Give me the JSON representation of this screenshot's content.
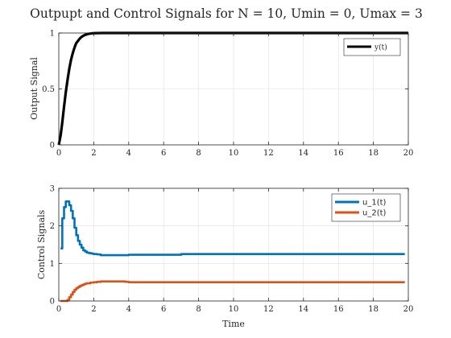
{
  "chart_data": [
    {
      "type": "line",
      "title": "Outpupt and Control Signals for N = 10, Umin = 0, Umax = 3",
      "xlabel": "",
      "ylabel": "Output Signal",
      "xlim": [
        0,
        20
      ],
      "ylim": [
        0,
        1
      ],
      "x_ticks": [
        "0",
        "2",
        "4",
        "6",
        "8",
        "10",
        "12",
        "14",
        "16",
        "18",
        "20"
      ],
      "y_ticks": [
        "0",
        "0.5",
        "1"
      ],
      "grid": true,
      "legend_position": "top-right",
      "series": [
        {
          "name": "y(t)",
          "color": "#000000",
          "x": [
            0,
            0.1,
            0.2,
            0.3,
            0.4,
            0.5,
            0.6,
            0.7,
            0.8,
            0.9,
            1.0,
            1.1,
            1.2,
            1.3,
            1.4,
            1.5,
            1.6,
            1.7,
            1.8,
            1.9,
            2.0,
            2.2,
            2.5,
            3.0,
            4.0,
            6.0,
            8.0,
            10.0,
            14.0,
            20.0
          ],
          "y": [
            0,
            0.08,
            0.2,
            0.34,
            0.47,
            0.58,
            0.68,
            0.76,
            0.82,
            0.87,
            0.91,
            0.93,
            0.95,
            0.965,
            0.975,
            0.983,
            0.988,
            0.992,
            0.995,
            0.997,
            0.998,
            0.999,
            1.0,
            1.0,
            1.0,
            1.0,
            1.0,
            1.0,
            1.0,
            1.0
          ]
        }
      ]
    },
    {
      "type": "line",
      "title": "",
      "xlabel": "Time",
      "ylabel": "Control Signals",
      "xlim": [
        0,
        20
      ],
      "ylim": [
        0,
        3
      ],
      "x_ticks": [
        "0",
        "2",
        "4",
        "6",
        "8",
        "10",
        "12",
        "14",
        "16",
        "18",
        "20"
      ],
      "y_ticks": [
        "0",
        "1",
        "2",
        "3"
      ],
      "grid": true,
      "legend_position": "top-right",
      "step": true,
      "series": [
        {
          "name": "u_1(t)",
          "color": "#0072BD",
          "x": [
            0.1,
            0.2,
            0.3,
            0.4,
            0.5,
            0.6,
            0.7,
            0.8,
            0.9,
            1.0,
            1.1,
            1.2,
            1.3,
            1.4,
            1.5,
            1.6,
            1.7,
            1.8,
            1.9,
            2.0,
            2.2,
            2.4,
            2.6,
            3.0,
            3.5,
            4.0,
            5.0,
            6.0,
            7.0,
            10.0,
            15.0,
            19.8
          ],
          "y": [
            1.4,
            2.2,
            2.5,
            2.65,
            2.65,
            2.55,
            2.4,
            2.2,
            1.95,
            1.75,
            1.6,
            1.5,
            1.42,
            1.35,
            1.32,
            1.29,
            1.28,
            1.27,
            1.26,
            1.25,
            1.24,
            1.22,
            1.22,
            1.22,
            1.22,
            1.23,
            1.23,
            1.23,
            1.25,
            1.25,
            1.25,
            1.25
          ]
        },
        {
          "name": "u_2(t)",
          "color": "#D95319",
          "x": [
            0.1,
            0.3,
            0.5,
            0.6,
            0.7,
            0.8,
            0.9,
            1.0,
            1.1,
            1.2,
            1.3,
            1.4,
            1.5,
            1.6,
            1.8,
            2.0,
            2.2,
            2.4,
            3.0,
            3.5,
            3.8,
            4.0,
            5.0,
            7.0,
            10.0,
            15.0,
            19.8
          ],
          "y": [
            0.0,
            0.0,
            0.03,
            0.1,
            0.17,
            0.24,
            0.3,
            0.34,
            0.37,
            0.4,
            0.42,
            0.44,
            0.46,
            0.47,
            0.49,
            0.5,
            0.51,
            0.52,
            0.52,
            0.52,
            0.51,
            0.5,
            0.5,
            0.5,
            0.5,
            0.5,
            0.5
          ]
        }
      ]
    }
  ]
}
